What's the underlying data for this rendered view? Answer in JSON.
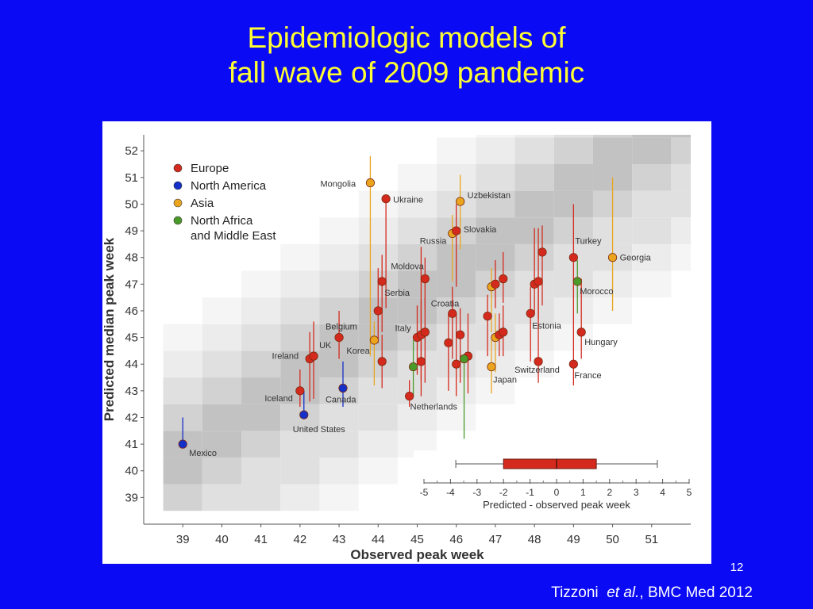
{
  "slide": {
    "title_line1": "Epidemiologic models of",
    "title_line2": "fall wave of 2009 pandemic",
    "slide_number": "12",
    "citation_author": "Tizzoni",
    "citation_etal": "et al.",
    "citation_rest": ", BMC Med 2012"
  },
  "colors": {
    "background": "#0a0af5",
    "title": "#ffff33",
    "Europe": "#d42a1e",
    "North America": "#1530c8",
    "Asia": "#eaa41e",
    "North Africa and Middle East": "#4a9a2a"
  },
  "chart_data": {
    "type": "scatter",
    "xlabel": "Observed peak week",
    "ylabel": "Predicted median peak week",
    "xlim": [
      38,
      52
    ],
    "ylim": [
      38,
      52.6
    ],
    "xticks": [
      39,
      40,
      41,
      42,
      43,
      44,
      45,
      46,
      47,
      48,
      49,
      50,
      51
    ],
    "yticks": [
      39,
      40,
      41,
      42,
      43,
      44,
      45,
      46,
      47,
      48,
      49,
      50,
      51,
      52
    ],
    "legend": {
      "placement": "top-left",
      "entries": [
        {
          "label": "Europe",
          "series": "Europe"
        },
        {
          "label": "North America",
          "series": "North America"
        },
        {
          "label": "Asia",
          "series": "Asia"
        },
        {
          "label": "North Africa",
          "label2": "and Middle East",
          "series": "North Africa and Middle East"
        }
      ]
    },
    "points": [
      {
        "label": "Mexico",
        "x": 39,
        "y": 41,
        "lo": 41,
        "hi": 42,
        "series": "North America"
      },
      {
        "label": "United States",
        "x": 42.1,
        "y": 42.1,
        "lo": 42.1,
        "hi": 43,
        "series": "North America"
      },
      {
        "label": "Canada",
        "x": 43.1,
        "y": 43.1,
        "lo": 42.4,
        "hi": 44.1,
        "series": "North America"
      },
      {
        "label": "Iceland",
        "x": 42,
        "y": 43,
        "lo": 42.4,
        "hi": 43.8,
        "series": "Europe"
      },
      {
        "label": "Ireland",
        "x": 42.25,
        "y": 44.2,
        "lo": 42.6,
        "hi": 45.2,
        "series": "Europe"
      },
      {
        "label": "UK",
        "x": 42.35,
        "y": 44.3,
        "lo": 42.7,
        "hi": 45.6,
        "series": "Europe"
      },
      {
        "label": "Belgium",
        "x": 43,
        "y": 45,
        "lo": 44.2,
        "hi": 46,
        "series": "Europe"
      },
      {
        "label": "Korea",
        "x": 43.9,
        "y": 44.9,
        "lo": 43.2,
        "hi": 45.6,
        "series": "Asia"
      },
      {
        "label": "Mongolia",
        "x": 43.8,
        "y": 50.8,
        "lo": 44.3,
        "hi": 51.8,
        "series": "Asia"
      },
      {
        "label": "Ukraine",
        "x": 44.2,
        "y": 50.2,
        "lo": 46.1,
        "hi": 50.2,
        "series": "Europe"
      },
      {
        "label": "Serbia",
        "x": 44.1,
        "y": 47.1,
        "lo": 45.2,
        "hi": 48.1,
        "series": "Europe"
      },
      {
        "label": "",
        "x": 44,
        "y": 46,
        "lo": 44.8,
        "hi": 47.6,
        "series": "Europe"
      },
      {
        "label": "",
        "x": 44.1,
        "y": 44.1,
        "lo": 43.1,
        "hi": 45.1,
        "series": "Europe"
      },
      {
        "label": "Moldova",
        "x": 45.2,
        "y": 47.2,
        "lo": 46.1,
        "hi": 48,
        "series": "Europe"
      },
      {
        "label": "Italy",
        "x": 45,
        "y": 45,
        "lo": 43.6,
        "hi": 46.2,
        "series": "Europe"
      },
      {
        "label": "",
        "x": 45.1,
        "y": 45.1,
        "lo": 43.4,
        "hi": 46.4,
        "series": "Europe"
      },
      {
        "label": "",
        "x": 45.2,
        "y": 45.2,
        "lo": 43.3,
        "hi": 46.5,
        "series": "Europe"
      },
      {
        "label": "",
        "x": 44.9,
        "y": 43.9,
        "lo": 42.8,
        "hi": 44.9,
        "series": "North Africa and Middle East"
      },
      {
        "label": "",
        "x": 45.1,
        "y": 44.1,
        "lo": 42.8,
        "hi": 48.4,
        "series": "Europe"
      },
      {
        "label": "Netherlands",
        "x": 44.8,
        "y": 42.8,
        "lo": 42.4,
        "hi": 43.4,
        "series": "Europe"
      },
      {
        "label": "Russia",
        "x": 45.9,
        "y": 48.9,
        "lo": 47.1,
        "hi": 49.6,
        "series": "Asia"
      },
      {
        "label": "Slovakia",
        "x": 46,
        "y": 49,
        "lo": 46.9,
        "hi": 50,
        "series": "Europe"
      },
      {
        "label": "Uzbekistan",
        "x": 46.1,
        "y": 50.1,
        "lo": 48.3,
        "hi": 51.1,
        "series": "Asia"
      },
      {
        "label": "Croatia",
        "x": 45.9,
        "y": 45.9,
        "lo": 44.2,
        "hi": 46.9,
        "series": "Europe"
      },
      {
        "label": "",
        "x": 45.8,
        "y": 44.8,
        "lo": 43,
        "hi": 45.9,
        "series": "Europe"
      },
      {
        "label": "",
        "x": 46.1,
        "y": 45.1,
        "lo": 43.3,
        "hi": 46.1,
        "series": "Europe"
      },
      {
        "label": "",
        "x": 46,
        "y": 44,
        "lo": 42.8,
        "hi": 45.9,
        "series": "Europe"
      },
      {
        "label": "",
        "x": 46.3,
        "y": 44.3,
        "lo": 42.9,
        "hi": 45.9,
        "series": "Europe"
      },
      {
        "label": "",
        "x": 46.2,
        "y": 44.2,
        "lo": 41.2,
        "hi": 44.2,
        "series": "North Africa and Middle East"
      },
      {
        "label": "",
        "x": 46.8,
        "y": 45.8,
        "lo": 44.3,
        "hi": 46.6,
        "series": "Europe"
      },
      {
        "label": "",
        "x": 46.9,
        "y": 46.9,
        "lo": 45.2,
        "hi": 47.6,
        "series": "Asia"
      },
      {
        "label": "",
        "x": 47,
        "y": 47,
        "lo": 46.1,
        "hi": 47.9,
        "series": "Europe"
      },
      {
        "label": "",
        "x": 47.2,
        "y": 47.2,
        "lo": 46.3,
        "hi": 48.2,
        "series": "Europe"
      },
      {
        "label": "",
        "x": 47,
        "y": 45,
        "lo": 43.7,
        "hi": 45.9,
        "series": "Asia"
      },
      {
        "label": "",
        "x": 47.1,
        "y": 45.1,
        "lo": 44.3,
        "hi": 45.9,
        "series": "Europe"
      },
      {
        "label": "",
        "x": 47.2,
        "y": 45.2,
        "lo": 44.3,
        "hi": 46.2,
        "series": "Europe"
      },
      {
        "label": "Japan",
        "x": 46.9,
        "y": 43.9,
        "lo": 42.9,
        "hi": 44.9,
        "series": "Asia"
      },
      {
        "label": "Estonia",
        "x": 47.9,
        "y": 45.9,
        "lo": 44.1,
        "hi": 46.9,
        "series": "Europe"
      },
      {
        "label": "",
        "x": 48,
        "y": 47,
        "lo": 45.9,
        "hi": 49.1,
        "series": "Europe"
      },
      {
        "label": "",
        "x": 48.1,
        "y": 47.1,
        "lo": 45.7,
        "hi": 49.1,
        "series": "Europe"
      },
      {
        "label": "",
        "x": 48.2,
        "y": 48.2,
        "lo": 46.2,
        "hi": 49.2,
        "series": "Europe"
      },
      {
        "label": "Switzerland",
        "x": 48.1,
        "y": 44.1,
        "lo": 43.3,
        "hi": 46.9,
        "series": "Europe"
      },
      {
        "label": "Turkey",
        "x": 49,
        "y": 48,
        "lo": 46.8,
        "hi": 50,
        "series": "Europe"
      },
      {
        "label": "Morocco",
        "x": 49.1,
        "y": 47.1,
        "lo": 45.9,
        "hi": 47.9,
        "series": "North Africa and Middle East"
      },
      {
        "label": "Hungary",
        "x": 49.2,
        "y": 45.2,
        "lo": 44.2,
        "hi": 47.2,
        "series": "Europe"
      },
      {
        "label": "France",
        "x": 49,
        "y": 44,
        "lo": 43.2,
        "hi": 46.9,
        "series": "Europe"
      },
      {
        "label": "Georgia",
        "x": 50,
        "y": 48,
        "lo": 46,
        "hi": 51,
        "series": "Asia"
      }
    ],
    "inset": {
      "type": "boxplot",
      "xlabel": "Predicted - observed peak week",
      "xticks": [
        -5,
        -4,
        -3,
        -2,
        -1,
        0,
        1,
        2,
        3,
        4,
        5
      ],
      "whisker_low": -3.8,
      "q1": -2,
      "median": 0,
      "q3": 1.5,
      "whisker_high": 3.8
    }
  }
}
